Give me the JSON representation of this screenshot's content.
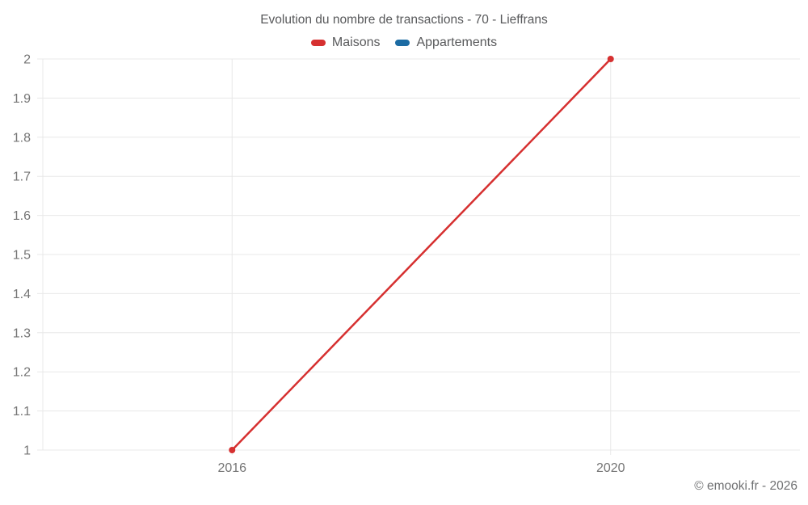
{
  "title": "Evolution du nombre de transactions - 70 - Lieffrans",
  "footer": "© emooki.fr - 2026",
  "colors": {
    "maisons": "#d63030",
    "appartements": "#1b6ba3",
    "grid": "#e8e8e8",
    "tick_label": "#757575",
    "heading_text": "#58595b",
    "footer_text": "#6f7072",
    "background": "#ffffff"
  },
  "chart_data": {
    "type": "line",
    "title": "Evolution du nombre de transactions - 70 - Lieffrans",
    "x": [
      2016,
      2020
    ],
    "x_tick_labels": [
      "2016",
      "2020"
    ],
    "x_domain": [
      2014,
      2022
    ],
    "series": [
      {
        "name": "Maisons",
        "color": "#d63030",
        "values": [
          1,
          2
        ]
      },
      {
        "name": "Appartements",
        "color": "#1b6ba3",
        "values": []
      }
    ],
    "xlabel": "",
    "ylabel": "",
    "ylim": [
      1,
      2
    ],
    "y_tick_step": 0.1,
    "grid": true,
    "legend_position": "top"
  }
}
